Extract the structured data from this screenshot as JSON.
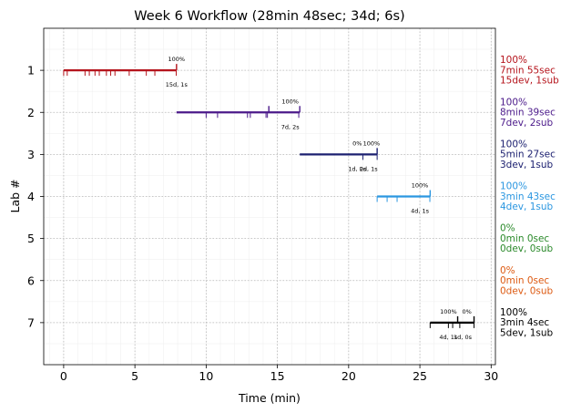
{
  "chart_data": {
    "type": "timeline",
    "title": "Week 6 Workflow (28min 48sec; 34d; 6s)",
    "xlabel": "Time (min)",
    "ylabel": "Lab #",
    "xlim": [
      -1.4,
      30.3
    ],
    "ylim": [
      8.0,
      0.0
    ],
    "x_ticks": [
      0,
      5,
      10,
      15,
      20,
      25,
      30
    ],
    "x_tick_labels": [
      "0",
      "5",
      "10",
      "15",
      "20",
      "25",
      "30"
    ],
    "y_ticks": [
      1,
      2,
      3,
      4,
      5,
      6,
      7
    ],
    "y_tick_labels": [
      "1",
      "2",
      "3",
      "4",
      "5",
      "6",
      "7"
    ],
    "grid": true,
    "labs": [
      {
        "lab": 1,
        "color": "#b5141c",
        "start": 0.0,
        "end": 7.92,
        "down_ticks": [
          0.0,
          0.25,
          1.5,
          1.8,
          2.2,
          2.5,
          3.0,
          3.3,
          3.6,
          4.6,
          5.8,
          6.4,
          7.9
        ],
        "up_ticks": [
          7.92
        ],
        "annotations": [
          {
            "text": "100%",
            "x": 7.92,
            "pos": "above"
          },
          {
            "text": "15d, 1s",
            "x": 7.92,
            "pos": "below"
          }
        ],
        "summary": [
          "100%",
          "7min 55sec",
          "15dev, 1sub"
        ]
      },
      {
        "lab": 2,
        "color": "#4b1a8a",
        "start": 7.92,
        "end": 16.57,
        "down_ticks": [
          10.0,
          10.8,
          12.9,
          13.1,
          14.2,
          14.3,
          16.5
        ],
        "up_ticks": [
          14.4,
          16.57
        ],
        "annotations": [
          {
            "text": "100%",
            "x": 15.9,
            "pos": "above"
          },
          {
            "text": "7d, 2s",
            "x": 15.9,
            "pos": "below"
          }
        ],
        "summary": [
          "100%",
          "8min 39sec",
          "7dev, 2sub"
        ]
      },
      {
        "lab": 3,
        "color": "#1c2070",
        "start": 16.57,
        "end": 22.0,
        "down_ticks": [
          21.0,
          22.0
        ],
        "up_ticks": [
          22.0
        ],
        "annotations": [
          {
            "text": "0%",
            "x": 20.6,
            "pos": "above"
          },
          {
            "text": "100%",
            "x": 21.6,
            "pos": "above"
          },
          {
            "text": "1d, 0s",
            "x": 20.6,
            "pos": "below"
          },
          {
            "text": "2d, 1s",
            "x": 21.4,
            "pos": "below"
          }
        ],
        "summary": [
          "100%",
          "5min 27sec",
          "3dev, 1sub"
        ]
      },
      {
        "lab": 4,
        "color": "#2a96e0",
        "start": 22.0,
        "end": 25.72,
        "down_ticks": [
          22.0,
          22.7,
          23.4,
          25.7
        ],
        "up_ticks": [
          25.72
        ],
        "annotations": [
          {
            "text": "100%",
            "x": 25.0,
            "pos": "above"
          },
          {
            "text": "4d, 1s",
            "x": 25.0,
            "pos": "below"
          }
        ],
        "summary": [
          "100%",
          "3min 43sec",
          "4dev, 1sub"
        ]
      },
      {
        "lab": 5,
        "color": "#2b8a2b",
        "start": null,
        "end": null,
        "down_ticks": [],
        "up_ticks": [],
        "annotations": [],
        "summary": [
          "0%",
          "0min 0sec",
          "0dev, 0sub"
        ]
      },
      {
        "lab": 6,
        "color": "#dd5a12",
        "start": null,
        "end": null,
        "down_ticks": [],
        "up_ticks": [],
        "annotations": [],
        "summary": [
          "0%",
          "0min 0sec",
          "0dev, 0sub"
        ]
      },
      {
        "lab": 7,
        "color": "#000000",
        "start": 25.72,
        "end": 28.8,
        "down_ticks": [
          25.72,
          27.0,
          27.3,
          27.8,
          28.8
        ],
        "up_ticks": [
          27.65,
          28.8
        ],
        "annotations": [
          {
            "text": "100%",
            "x": 27.0,
            "pos": "above"
          },
          {
            "text": "0%",
            "x": 28.3,
            "pos": "above"
          },
          {
            "text": "4d, 1s",
            "x": 27.0,
            "pos": "below"
          },
          {
            "text": "1d, 0s",
            "x": 28.0,
            "pos": "below"
          }
        ],
        "summary": [
          "100%",
          "3min 4sec",
          "5dev, 1sub"
        ]
      }
    ]
  }
}
